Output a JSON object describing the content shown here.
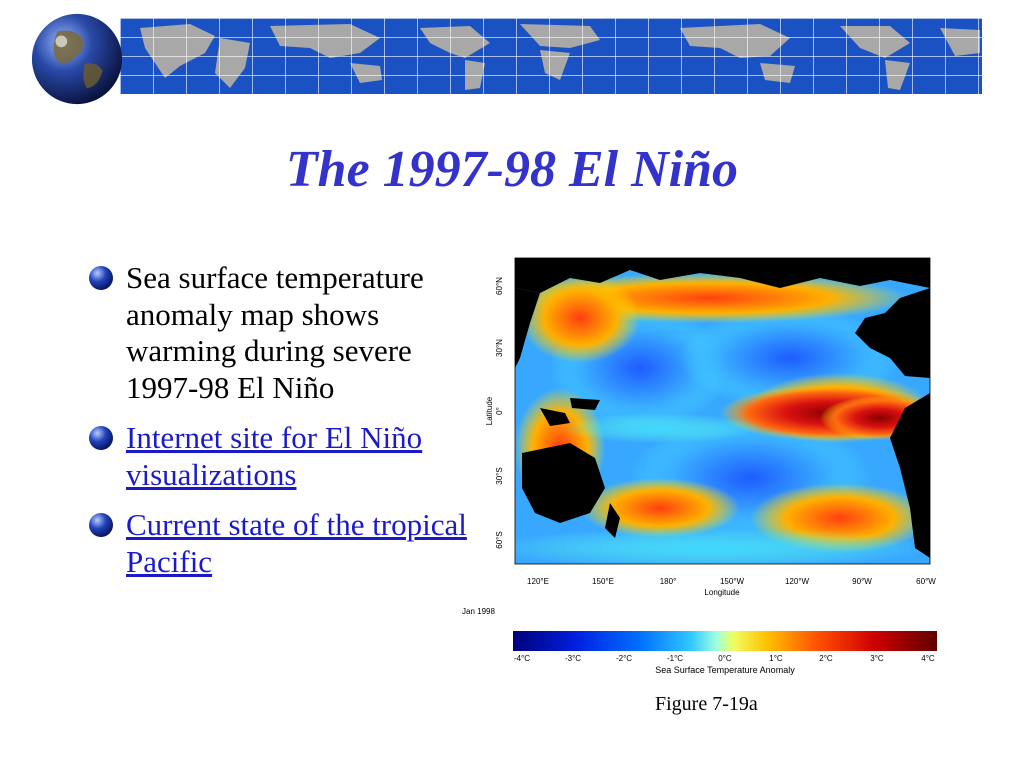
{
  "slide": {
    "title": "The 1997-98 El Niño",
    "bullets": [
      {
        "text": "Sea surface temperature anomaly map shows warming during severe 1997-98 El Niño",
        "link": false
      },
      {
        "text": "Internet site for El Niño visualizations",
        "link": true
      },
      {
        "text": "Current state of the tropical Pacific",
        "link": true
      }
    ],
    "caption": "Figure 7-19a"
  },
  "map": {
    "date_label": "Jan 1998",
    "x_axis_label": "Longitude",
    "y_axis_label": "Latitude",
    "x_ticks": [
      "120°E",
      "150°E",
      "180°",
      "150°W",
      "120°W",
      "90°W",
      "60°W"
    ],
    "y_ticks": [
      "60°N",
      "30°N",
      "0°",
      "30°S",
      "60°S"
    ],
    "colorbar_label": "Sea Surface Temperature Anomaly",
    "colorbar_ticks": [
      "-4°C",
      "-3°C",
      "-2°C",
      "-1°C",
      "0°C",
      "1°C",
      "2°C",
      "3°C",
      "4°C"
    ]
  },
  "colors": {
    "title": "#3333cc",
    "link": "#1a1acc",
    "banner_ocean": "#1a52c4",
    "land": "#000000"
  },
  "icons": {
    "globe": "globe-icon",
    "bullet": "sphere-bullet-icon"
  }
}
